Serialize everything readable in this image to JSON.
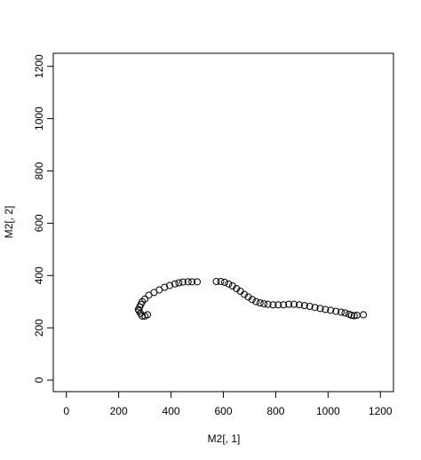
{
  "chart_data": {
    "type": "scatter",
    "xlabel": "M2[, 1]",
    "ylabel": "M2[, 2]",
    "x": [
      310,
      300,
      290,
      283,
      278,
      275,
      280,
      285,
      290,
      300,
      315,
      335,
      355,
      375,
      395,
      415,
      430,
      445,
      465,
      480,
      500,
      573,
      590,
      605,
      620,
      635,
      650,
      665,
      680,
      695,
      710,
      725,
      740,
      755,
      770,
      790,
      810,
      830,
      850,
      870,
      890,
      910,
      930,
      950,
      970,
      990,
      1010,
      1030,
      1050,
      1065,
      1080,
      1090,
      1100,
      1110,
      1135
    ],
    "values": [
      250,
      245,
      245,
      255,
      265,
      270,
      280,
      290,
      300,
      310,
      325,
      335,
      345,
      355,
      362,
      368,
      372,
      375,
      376,
      376,
      376,
      377,
      377,
      374,
      368,
      360,
      350,
      340,
      328,
      318,
      308,
      300,
      295,
      292,
      290,
      288,
      288,
      288,
      290,
      290,
      288,
      285,
      282,
      278,
      274,
      270,
      267,
      263,
      260,
      257,
      252,
      248,
      246,
      248,
      250
    ],
    "color": "#000000",
    "xlim": [
      -50,
      1250
    ],
    "ylim": [
      -44,
      1250
    ],
    "xticks": [
      0,
      200,
      400,
      600,
      800,
      1000,
      1200
    ],
    "yticks": [
      0,
      200,
      400,
      600,
      800,
      1000,
      1200
    ]
  }
}
